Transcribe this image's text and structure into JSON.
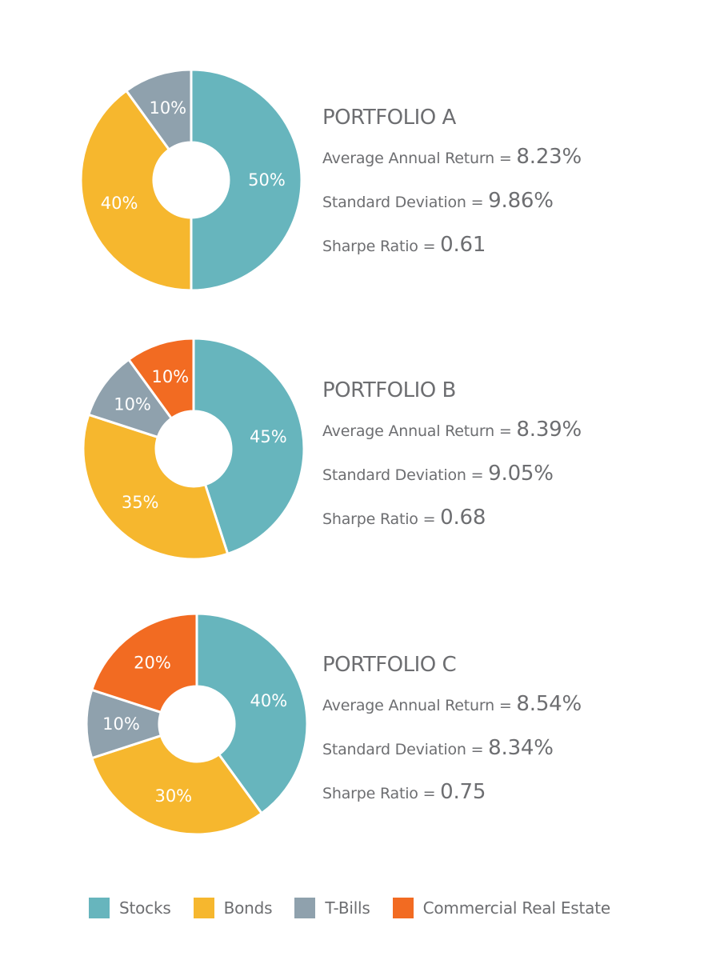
{
  "colors": {
    "stocks": "#67b5bd",
    "bonds": "#f6b72e",
    "tbills": "#8fa1ad",
    "cre": "#f26b22",
    "text": "#6d6e71"
  },
  "portfolios": [
    {
      "title": "PORTFOLIO A",
      "return_label": "Average Annual Return = ",
      "return_value": "8.23%",
      "stdev_label": "Standard Deviation = ",
      "stdev_value": "9.86%",
      "sharpe_label": "Sharpe Ratio = ",
      "sharpe_value": "0.61",
      "slices": [
        {
          "name": "Stocks",
          "value": 50,
          "label": "50%"
        },
        {
          "name": "Bonds",
          "value": 40,
          "label": "40%"
        },
        {
          "name": "T-Bills",
          "value": 10,
          "label": "10%"
        }
      ]
    },
    {
      "title": "PORTFOLIO B",
      "return_label": "Average Annual Return = ",
      "return_value": "8.39%",
      "stdev_label": "Standard Deviation = ",
      "stdev_value": "9.05%",
      "sharpe_label": "Sharpe Ratio = ",
      "sharpe_value": "0.68",
      "slices": [
        {
          "name": "Stocks",
          "value": 45,
          "label": "45%"
        },
        {
          "name": "Bonds",
          "value": 35,
          "label": "35%"
        },
        {
          "name": "T-Bills",
          "value": 10,
          "label": "10%"
        },
        {
          "name": "Commercial Real Estate",
          "value": 10,
          "label": "10%"
        }
      ]
    },
    {
      "title": "PORTFOLIO C",
      "return_label": "Average Annual Return = ",
      "return_value": "8.54%",
      "stdev_label": "Standard Deviation = ",
      "stdev_value": "8.34%",
      "sharpe_label": "Sharpe Ratio = ",
      "sharpe_value": "0.75",
      "slices": [
        {
          "name": "Stocks",
          "value": 40,
          "label": "40%"
        },
        {
          "name": "Bonds",
          "value": 30,
          "label": "30%"
        },
        {
          "name": "T-Bills",
          "value": 10,
          "label": "10%"
        },
        {
          "name": "Commercial Real Estate",
          "value": 20,
          "label": "20%"
        }
      ]
    }
  ],
  "legend": [
    {
      "label": "Stocks",
      "color": "#67b5bd"
    },
    {
      "label": "Bonds",
      "color": "#f6b72e"
    },
    {
      "label": "T-Bills",
      "color": "#8fa1ad"
    },
    {
      "label": "Commercial Real Estate",
      "color": "#f26b22"
    }
  ],
  "chart_data": [
    {
      "type": "pie",
      "title": "PORTFOLIO A",
      "categories": [
        "Stocks",
        "Bonds",
        "T-Bills",
        "Commercial Real Estate"
      ],
      "values": [
        50,
        40,
        10,
        0
      ],
      "annotations": [
        "Average Annual Return = 8.23%",
        "Standard Deviation = 9.86%",
        "Sharpe Ratio = 0.61"
      ],
      "donut": true,
      "legend_position": "bottom"
    },
    {
      "type": "pie",
      "title": "PORTFOLIO B",
      "categories": [
        "Stocks",
        "Bonds",
        "T-Bills",
        "Commercial Real Estate"
      ],
      "values": [
        45,
        35,
        10,
        10
      ],
      "annotations": [
        "Average Annual Return = 8.39%",
        "Standard Deviation = 9.05%",
        "Sharpe Ratio = 0.68"
      ],
      "donut": true,
      "legend_position": "bottom"
    },
    {
      "type": "pie",
      "title": "PORTFOLIO C",
      "categories": [
        "Stocks",
        "Bonds",
        "T-Bills",
        "Commercial Real Estate"
      ],
      "values": [
        40,
        30,
        10,
        20
      ],
      "annotations": [
        "Average Annual Return = 8.54%",
        "Standard Deviation = 8.34%",
        "Sharpe Ratio = 0.75"
      ],
      "donut": true,
      "legend_position": "bottom"
    }
  ]
}
